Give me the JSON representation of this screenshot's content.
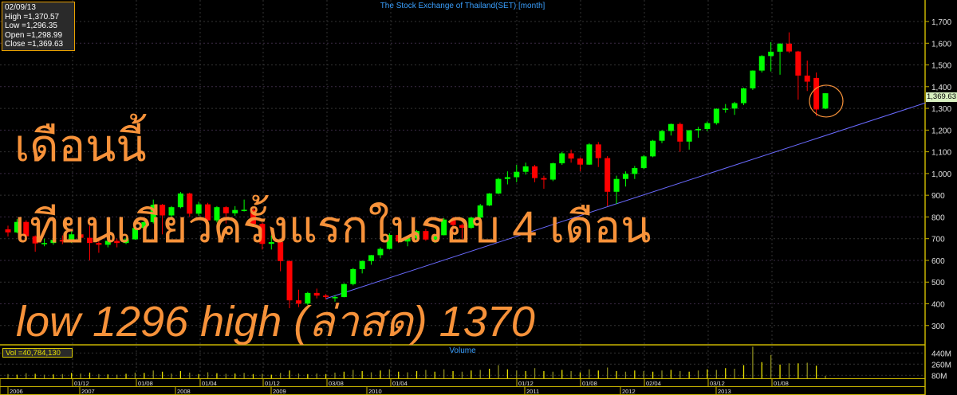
{
  "header": {
    "title": "The Stock Exchange of Thailand(SET) [month]"
  },
  "info_box": {
    "date": "02/09/13",
    "high": "High =1,370.57",
    "low": "Low =1,296.35",
    "open": "Open =1,298.99",
    "close": "Close =1,369.63"
  },
  "last_price_label": "1,369.63",
  "volume_panel": {
    "title": "Volume",
    "readout": "Vol  =40,784,130",
    "ticks": [
      "440M",
      "260M",
      "80M"
    ],
    "tick_values": [
      440,
      260,
      80
    ]
  },
  "annotations": {
    "line1": "เดือนนี้",
    "line2": "เทียนเขียวครั้งแรกในรอบ 4 เดือน",
    "line3": "low 1296  high (ล่าสด) 1370"
  },
  "colors": {
    "up": "#00ff00",
    "down": "#ff0000",
    "trendline": "#6a6aff",
    "annotation": "#f7923a",
    "axis": "#c8b400",
    "volume": "#e8e000"
  },
  "chart_data": {
    "type": "candlestick",
    "title": "The Stock Exchange of Thailand(SET) [month]",
    "start_month": "2006-03",
    "y_ticks": [
      300,
      400,
      500,
      600,
      700,
      800,
      900,
      1000,
      1100,
      1200,
      1300,
      1400,
      1500,
      1600,
      1700
    ],
    "y_tick_labels": [
      "300",
      "400",
      "500",
      "600",
      "700",
      "800",
      "900",
      "1,000",
      "1,100",
      "1,200",
      "1,300",
      "1,400",
      "1,500",
      "1,600",
      "1,700"
    ],
    "ylim": [
      220,
      1720
    ],
    "grid": true,
    "date_labels": [
      "01/12",
      "01/08",
      "01/04",
      "01/12",
      "03/08",
      "01/04",
      "01/12",
      "01/08",
      "02/04",
      "03/12",
      "01/08"
    ],
    "year_labels": [
      "2006",
      "2007",
      "2008",
      "2009",
      "2010",
      "2011",
      "2012",
      "2013"
    ],
    "trendline": {
      "from": [
        "2009-02",
        424
      ],
      "to": [
        "2014-08",
        1325
      ]
    },
    "ohlc": [
      [
        743,
        760,
        710,
        729
      ],
      [
        729,
        790,
        725,
        777
      ],
      [
        777,
        785,
        690,
        711
      ],
      [
        711,
        715,
        640,
        678
      ],
      [
        678,
        700,
        665,
        680
      ],
      [
        680,
        705,
        672,
        694
      ],
      [
        694,
        715,
        675,
        687
      ],
      [
        687,
        735,
        680,
        720
      ],
      [
        720,
        740,
        695,
        704
      ],
      [
        704,
        760,
        600,
        680
      ],
      [
        680,
        700,
        635,
        672
      ],
      [
        672,
        705,
        660,
        690
      ],
      [
        690,
        700,
        660,
        680
      ],
      [
        680,
        705,
        675,
        697
      ],
      [
        697,
        755,
        695,
        749
      ],
      [
        749,
        790,
        740,
        776
      ],
      [
        776,
        880,
        770,
        856
      ],
      [
        856,
        860,
        720,
        807
      ],
      [
        807,
        850,
        790,
        845
      ],
      [
        845,
        915,
        840,
        908
      ],
      [
        908,
        912,
        800,
        815
      ],
      [
        815,
        870,
        805,
        858
      ],
      [
        858,
        865,
        720,
        784
      ],
      [
        784,
        850,
        775,
        845
      ],
      [
        845,
        850,
        770,
        817
      ],
      [
        817,
        850,
        805,
        832
      ],
      [
        832,
        880,
        825,
        833
      ],
      [
        833,
        840,
        760,
        768
      ],
      [
        768,
        775,
        650,
        676
      ],
      [
        676,
        715,
        650,
        684
      ],
      [
        684,
        700,
        550,
        597
      ],
      [
        597,
        600,
        380,
        416
      ],
      [
        416,
        465,
        385,
        401
      ],
      [
        401,
        455,
        395,
        450
      ],
      [
        450,
        470,
        425,
        438
      ],
      [
        438,
        445,
        420,
        431
      ],
      [
        431,
        440,
        410,
        431
      ],
      [
        431,
        495,
        430,
        491
      ],
      [
        491,
        565,
        485,
        560
      ],
      [
        560,
        600,
        540,
        597
      ],
      [
        597,
        625,
        580,
        624
      ],
      [
        624,
        660,
        610,
        653
      ],
      [
        653,
        725,
        650,
        717
      ],
      [
        717,
        735,
        680,
        687
      ],
      [
        687,
        710,
        665,
        703
      ],
      [
        703,
        740,
        695,
        735
      ],
      [
        735,
        745,
        690,
        696
      ],
      [
        696,
        720,
        680,
        716
      ],
      [
        716,
        795,
        715,
        788
      ],
      [
        788,
        800,
        730,
        763
      ],
      [
        763,
        770,
        700,
        750
      ],
      [
        750,
        800,
        745,
        797
      ],
      [
        797,
        860,
        790,
        853
      ],
      [
        853,
        910,
        850,
        908
      ],
      [
        908,
        980,
        905,
        975
      ],
      [
        975,
        1010,
        950,
        983
      ],
      [
        983,
        1040,
        960,
        1008
      ],
      [
        1008,
        1050,
        995,
        1033
      ],
      [
        1033,
        1040,
        960,
        979
      ],
      [
        979,
        990,
        930,
        972
      ],
      [
        972,
        1050,
        965,
        1047
      ],
      [
        1047,
        1100,
        1040,
        1093
      ],
      [
        1093,
        1110,
        1050,
        1069
      ],
      [
        1069,
        1075,
        1010,
        1041
      ],
      [
        1041,
        1140,
        1040,
        1134
      ],
      [
        1134,
        1145,
        1030,
        1071
      ],
      [
        1071,
        1080,
        850,
        916
      ],
      [
        916,
        990,
        860,
        975
      ],
      [
        975,
        1010,
        940,
        998
      ],
      [
        998,
        1035,
        975,
        1025
      ],
      [
        1025,
        1085,
        1020,
        1079
      ],
      [
        1079,
        1155,
        1075,
        1151
      ],
      [
        1151,
        1200,
        1140,
        1196
      ],
      [
        1196,
        1230,
        1175,
        1228
      ],
      [
        1228,
        1235,
        1100,
        1147
      ],
      [
        1147,
        1200,
        1110,
        1199
      ],
      [
        1199,
        1215,
        1165,
        1205
      ],
      [
        1205,
        1240,
        1195,
        1232
      ],
      [
        1232,
        1300,
        1225,
        1298
      ],
      [
        1298,
        1320,
        1280,
        1299
      ],
      [
        1299,
        1330,
        1270,
        1324
      ],
      [
        1324,
        1395,
        1315,
        1392
      ],
      [
        1392,
        1475,
        1385,
        1474
      ],
      [
        1474,
        1545,
        1465,
        1541
      ],
      [
        1541,
        1605,
        1470,
        1561
      ],
      [
        1561,
        1600,
        1455,
        1598
      ],
      [
        1598,
        1650,
        1555,
        1562
      ],
      [
        1562,
        1565,
        1340,
        1451
      ],
      [
        1451,
        1520,
        1380,
        1423
      ],
      [
        1440,
        1465,
        1265,
        1295
      ],
      [
        1298.99,
        1370.57,
        1296.35,
        1369.63
      ]
    ],
    "volume_m": [
      70,
      60,
      85,
      75,
      60,
      65,
      70,
      90,
      80,
      95,
      70,
      65,
      60,
      75,
      95,
      90,
      130,
      110,
      80,
      120,
      95,
      70,
      100,
      85,
      75,
      80,
      90,
      70,
      75,
      60,
      90,
      130,
      80,
      70,
      80,
      70,
      95,
      110,
      140,
      120,
      100,
      130,
      150,
      110,
      100,
      120,
      140,
      110,
      150,
      120,
      110,
      130,
      140,
      160,
      220,
      150,
      130,
      120,
      170,
      120,
      110,
      140,
      120,
      100,
      150,
      130,
      180,
      120,
      110,
      130,
      120,
      110,
      130,
      140,
      120,
      110,
      130,
      150,
      140,
      170,
      160,
      220,
      530,
      270,
      390,
      230,
      250,
      250,
      260,
      210,
      41
    ]
  }
}
